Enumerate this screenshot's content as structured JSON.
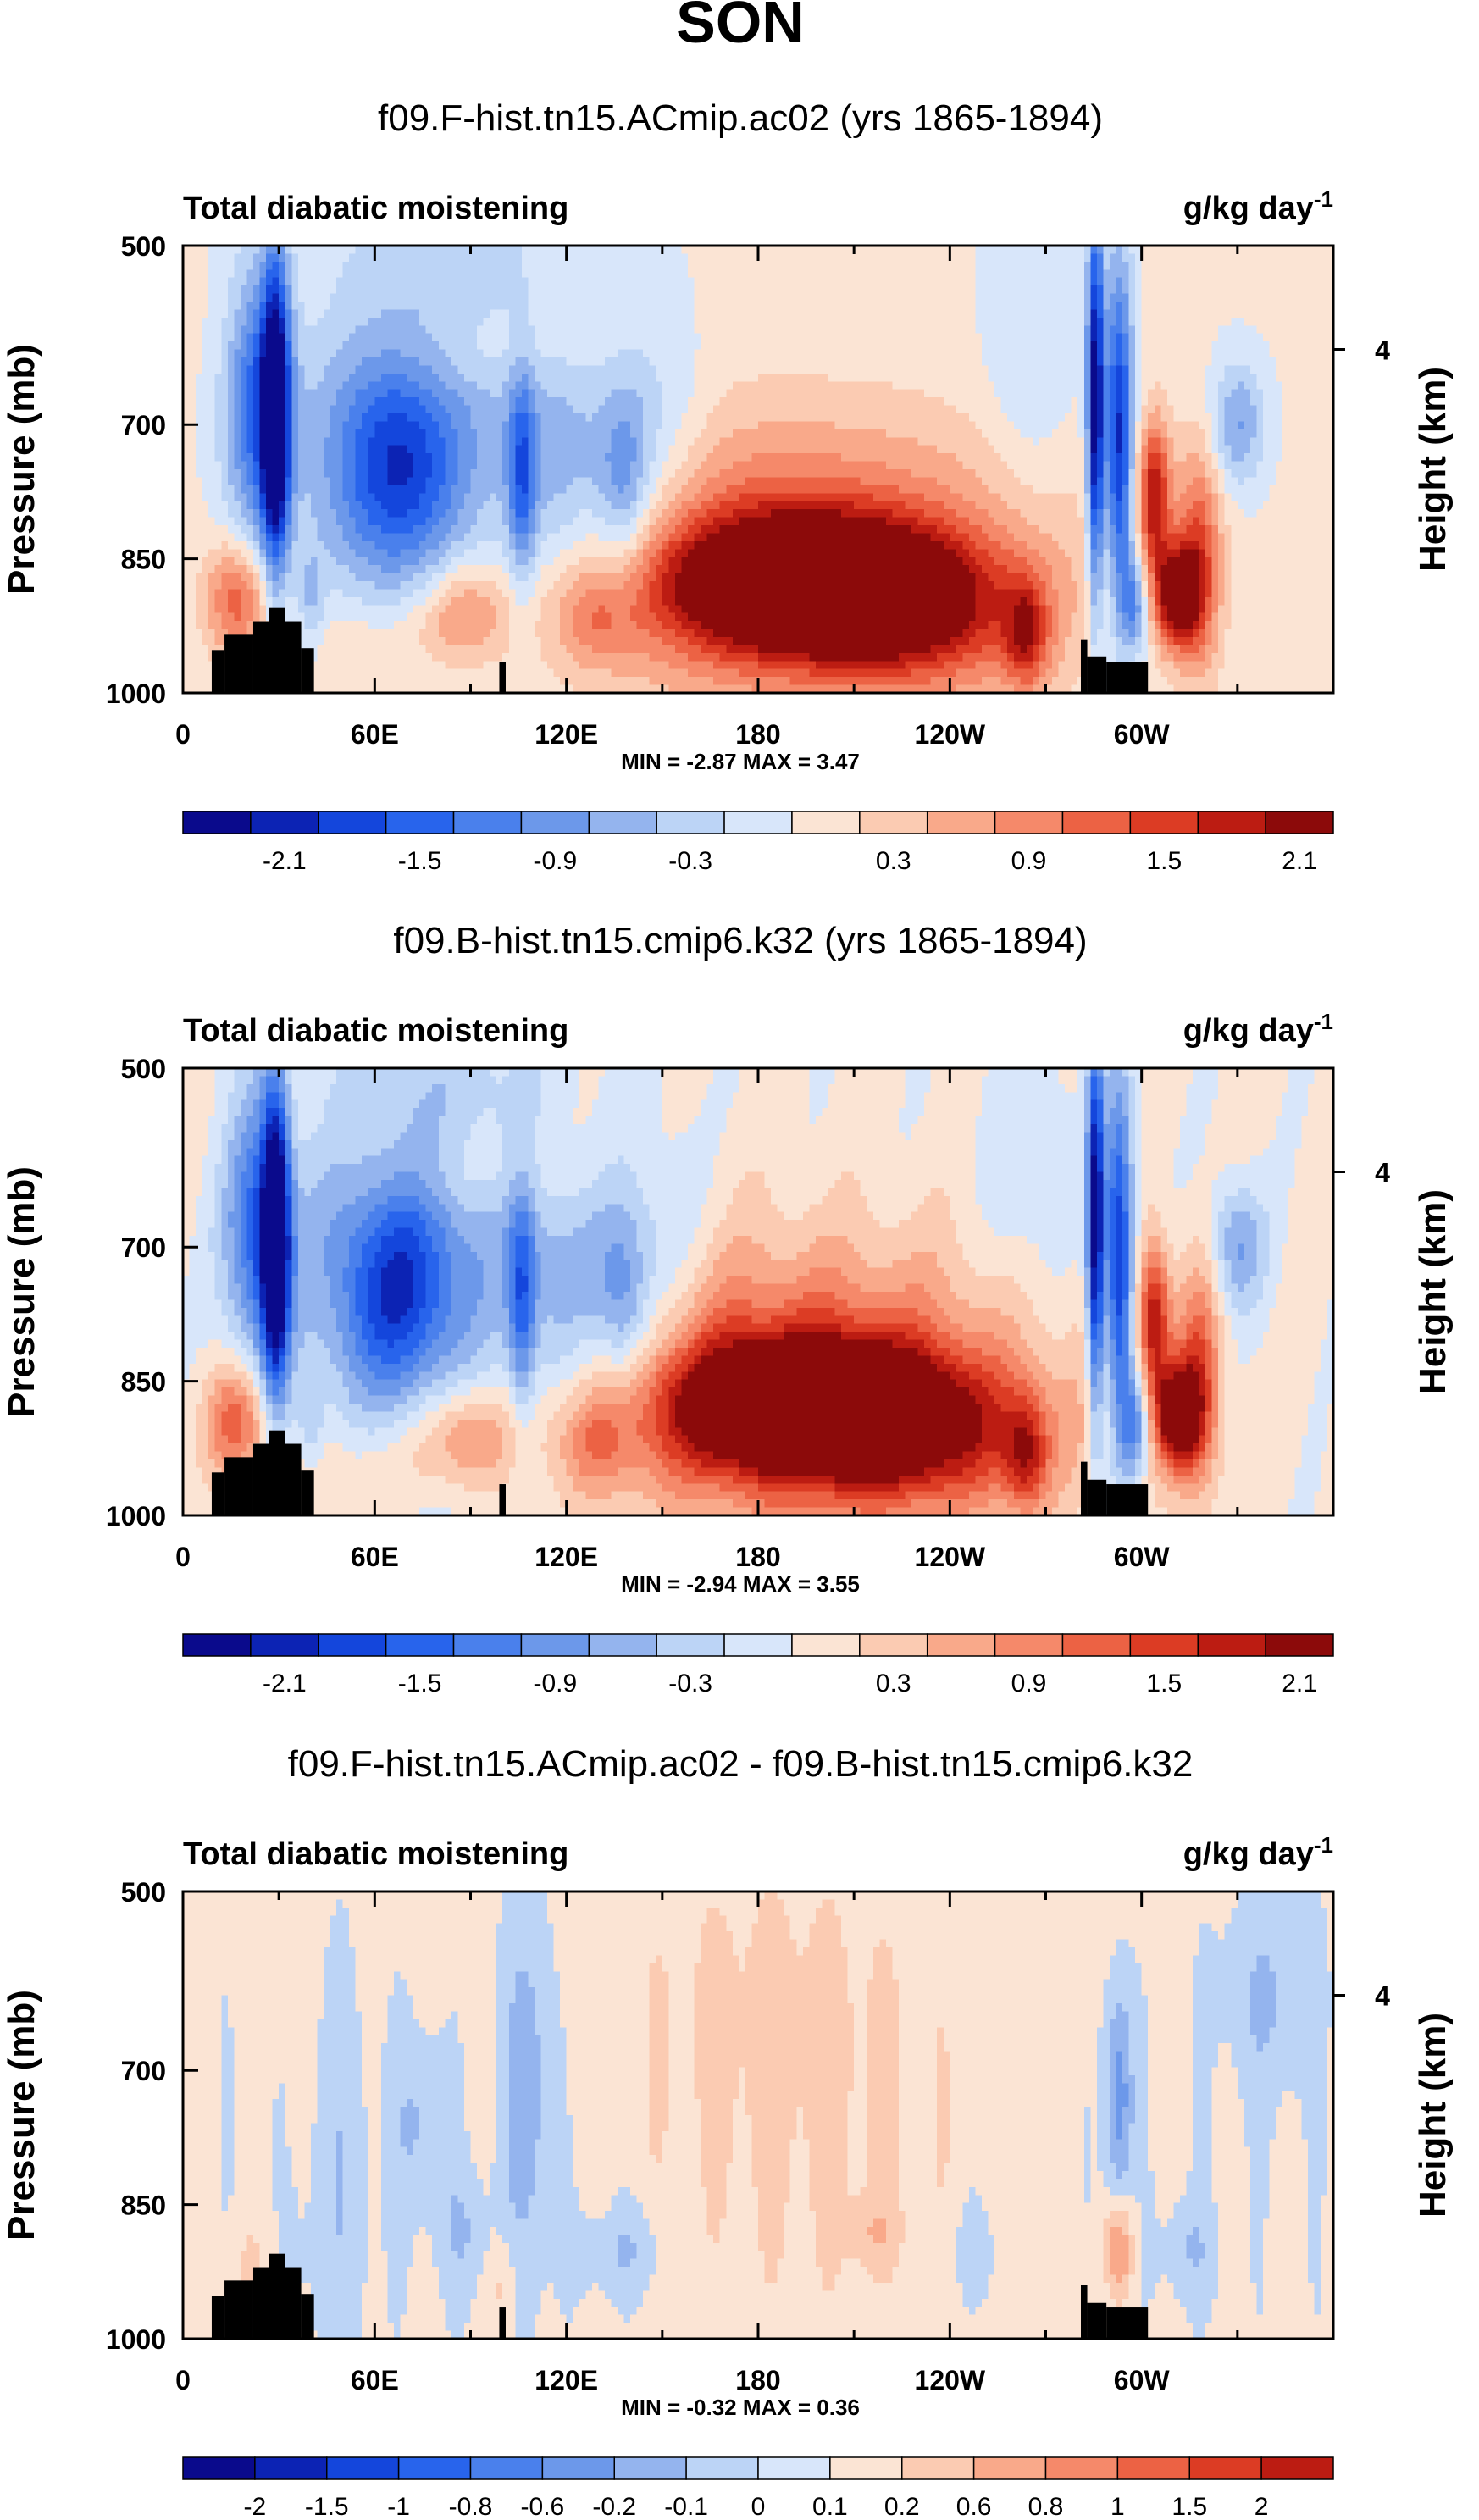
{
  "figure_title": "SON",
  "chart_data": [
    {
      "type": "heatmap",
      "title": "f09.F-hist.tn15.ACmip.ac02 (yrs 1865-1894)",
      "left_string": "Total diabatic moistening",
      "right_string": "g/kg day",
      "right_string_sup": "-1",
      "ylabel": "Pressure (mb)",
      "ylabel_right": "Height (km)",
      "xlim": [
        0,
        360
      ],
      "x_ticks": [
        "0",
        "60E",
        "120E",
        "180",
        "120W",
        "60W"
      ],
      "x_tick_values": [
        0,
        60,
        120,
        180,
        240,
        300
      ],
      "y_ticks": [
        "500",
        "700",
        "850",
        "1000"
      ],
      "y_tick_values": [
        500,
        700,
        850,
        1000
      ],
      "right_ticks": [
        "4"
      ],
      "right_tick_pressure": [
        616
      ],
      "stats": "MIN = -2.87  MAX =  3.47",
      "min": -2.87,
      "max": 3.47,
      "colorbar_labels": [
        "-2.1",
        "-1.5",
        "-0.9",
        "-0.3",
        "0.3",
        "0.9",
        "1.5",
        "2.1"
      ],
      "colorbar_levels": [
        -2.4,
        -2.1,
        -1.8,
        -1.5,
        -1.2,
        -0.9,
        -0.6,
        -0.3,
        0,
        0.3,
        0.6,
        0.9,
        1.2,
        1.5,
        1.8,
        2.1,
        2.4
      ]
    },
    {
      "type": "heatmap",
      "title": "f09.B-hist.tn15.cmip6.k32 (yrs 1865-1894)",
      "left_string": "Total diabatic moistening",
      "right_string": "g/kg day",
      "right_string_sup": "-1",
      "ylabel": "Pressure (mb)",
      "ylabel_right": "Height (km)",
      "xlim": [
        0,
        360
      ],
      "x_ticks": [
        "0",
        "60E",
        "120E",
        "180",
        "120W",
        "60W"
      ],
      "x_tick_values": [
        0,
        60,
        120,
        180,
        240,
        300
      ],
      "y_ticks": [
        "500",
        "700",
        "850",
        "1000"
      ],
      "y_tick_values": [
        500,
        700,
        850,
        1000
      ],
      "right_ticks": [
        "4"
      ],
      "right_tick_pressure": [
        616
      ],
      "stats": "MIN = -2.94  MAX =  3.55",
      "min": -2.94,
      "max": 3.55,
      "colorbar_labels": [
        "-2.1",
        "-1.5",
        "-0.9",
        "-0.3",
        "0.3",
        "0.9",
        "1.5",
        "2.1"
      ],
      "colorbar_levels": [
        -2.4,
        -2.1,
        -1.8,
        -1.5,
        -1.2,
        -0.9,
        -0.6,
        -0.3,
        0,
        0.3,
        0.6,
        0.9,
        1.2,
        1.5,
        1.8,
        2.1,
        2.4
      ]
    },
    {
      "type": "heatmap",
      "title": "f09.F-hist.tn15.ACmip.ac02 - f09.B-hist.tn15.cmip6.k32",
      "left_string": "Total diabatic moistening",
      "right_string": "g/kg day",
      "right_string_sup": "-1",
      "ylabel": "Pressure (mb)",
      "ylabel_right": "Height (km)",
      "xlim": [
        0,
        360
      ],
      "x_ticks": [
        "0",
        "60E",
        "120E",
        "180",
        "120W",
        "60W"
      ],
      "x_tick_values": [
        0,
        60,
        120,
        180,
        240,
        300
      ],
      "y_ticks": [
        "500",
        "700",
        "850",
        "1000"
      ],
      "y_tick_values": [
        500,
        700,
        850,
        1000
      ],
      "right_ticks": [
        "4"
      ],
      "right_tick_pressure": [
        616
      ],
      "stats": "MIN = -0.32  MAX =  0.36",
      "min": -0.32,
      "max": 0.36,
      "colorbar_labels": [
        "-2",
        "-1.5",
        "-1",
        "-0.8",
        "-0.6",
        "-0.2",
        "-0.1",
        "0",
        "0.1",
        "0.2",
        "0.6",
        "0.8",
        "1",
        "1.5",
        "2"
      ],
      "colorbar_levels": [
        -2,
        -1.5,
        -1,
        -0.8,
        -0.6,
        -0.2,
        -0.1,
        0,
        0.1,
        0.2,
        0.6,
        0.8,
        1,
        1.5,
        2
      ]
    }
  ],
  "palette": [
    "#0a0a8c",
    "#0c23b4",
    "#1446dc",
    "#2864ec",
    "#4a80ec",
    "#6c98ea",
    "#94b4ee",
    "#bcd4f6",
    "#d8e6fa",
    "#fbe4d4",
    "#fbcbb2",
    "#f9a98a",
    "#f5896a",
    "#ec6244",
    "#dc3c24",
    "#bc1c12",
    "#8c0a0a"
  ]
}
